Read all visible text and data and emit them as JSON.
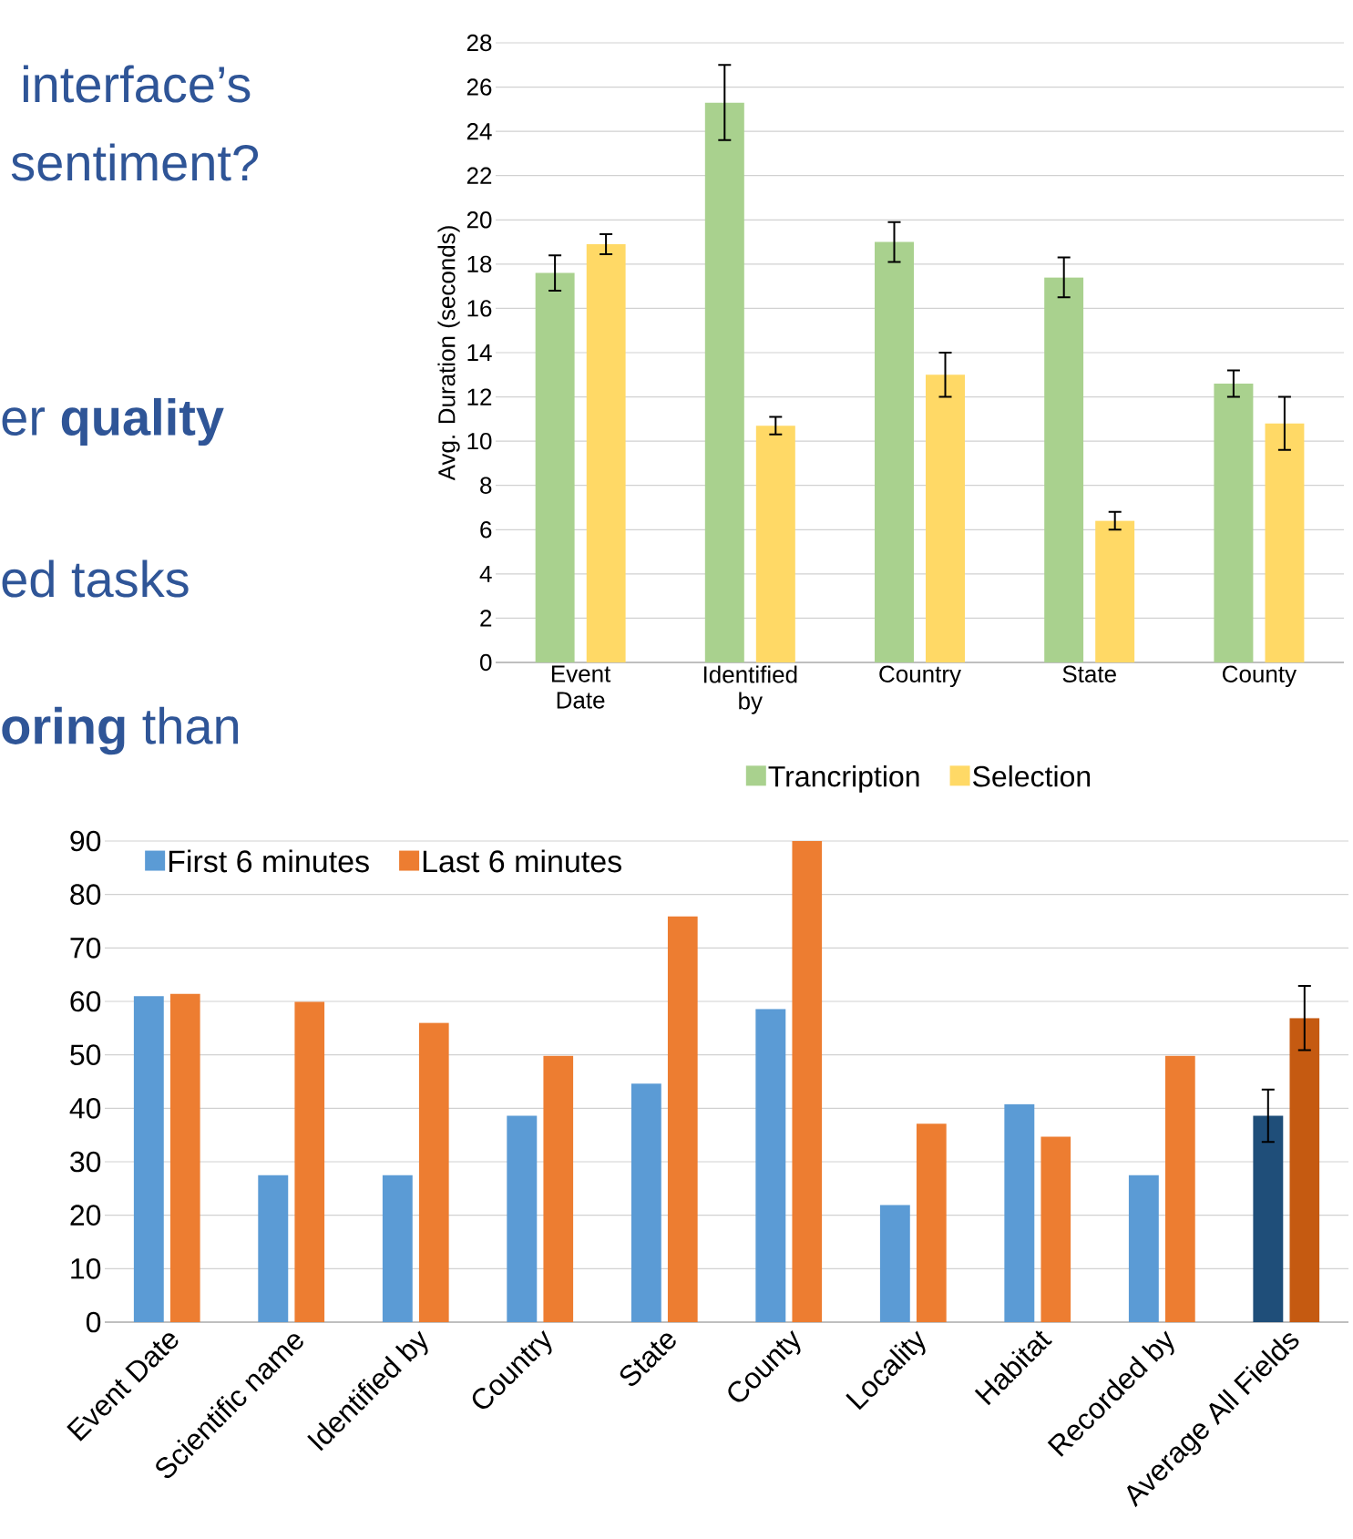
{
  "chart_data": [
    {
      "type": "bar",
      "ylabel": "Avg. Duration (seconds)",
      "categories": [
        "Event Date",
        "Identified by",
        "Country",
        "State",
        "County"
      ],
      "series": [
        {
          "name": "Trancription",
          "color": "#a9d18e",
          "values": [
            17.6,
            25.3,
            19.0,
            17.4,
            12.6
          ],
          "errors": [
            0.8,
            1.7,
            0.9,
            0.9,
            0.6
          ]
        },
        {
          "name": "Selection",
          "color": "#ffd966",
          "values": [
            18.9,
            10.7,
            13.0,
            6.4,
            10.8
          ],
          "errors": [
            0.45,
            0.4,
            1.0,
            0.4,
            1.2
          ]
        }
      ],
      "ylim": [
        0,
        28
      ],
      "yticks": [
        0,
        2,
        4,
        6,
        8,
        10,
        12,
        14,
        16,
        18,
        20,
        22,
        24,
        26,
        28
      ],
      "grid": "y",
      "legend": "bottom",
      "annotations": [
        "interface’s",
        "sentiment?",
        "er **quality**",
        "ed tasks",
        "**oring** than"
      ]
    },
    {
      "type": "bar",
      "categories": [
        "Event Date",
        "Scientific name",
        "Identified by",
        "Country",
        "State",
        "County",
        "Locality",
        "Habitat",
        "Recorded by",
        "Average All Fields"
      ],
      "series": [
        {
          "name": "First 6 minutes",
          "color": "#5b9bd5",
          "colors": [
            "#5b9bd5",
            "#5b9bd5",
            "#5b9bd5",
            "#5b9bd5",
            "#5b9bd5",
            "#5b9bd5",
            "#5b9bd5",
            "#5b9bd5",
            "#5b9bd5",
            "#1f4e79"
          ],
          "values": [
            61,
            27.5,
            27.5,
            38.6,
            44.6,
            58.6,
            21.9,
            40.8,
            27.5,
            38.6
          ],
          "errors": [
            null,
            null,
            null,
            null,
            null,
            null,
            null,
            null,
            null,
            4.9
          ]
        },
        {
          "name": "Last 6 minutes",
          "color": "#ed7d31",
          "colors": [
            "#ed7d31",
            "#ed7d31",
            "#ed7d31",
            "#ed7d31",
            "#ed7d31",
            "#ed7d31",
            "#ed7d31",
            "#ed7d31",
            "#ed7d31",
            "#c55a11"
          ],
          "values": [
            61.4,
            59.9,
            56.0,
            49.8,
            75.9,
            90,
            37.1,
            34.7,
            49.8,
            56.9
          ],
          "errors": [
            null,
            null,
            null,
            null,
            null,
            null,
            null,
            null,
            null,
            6
          ]
        }
      ],
      "ylim": [
        0,
        90
      ],
      "yticks": [
        0,
        10,
        20,
        30,
        40,
        50,
        60,
        70,
        80,
        90
      ],
      "grid": "y",
      "legend": "top left"
    }
  ]
}
